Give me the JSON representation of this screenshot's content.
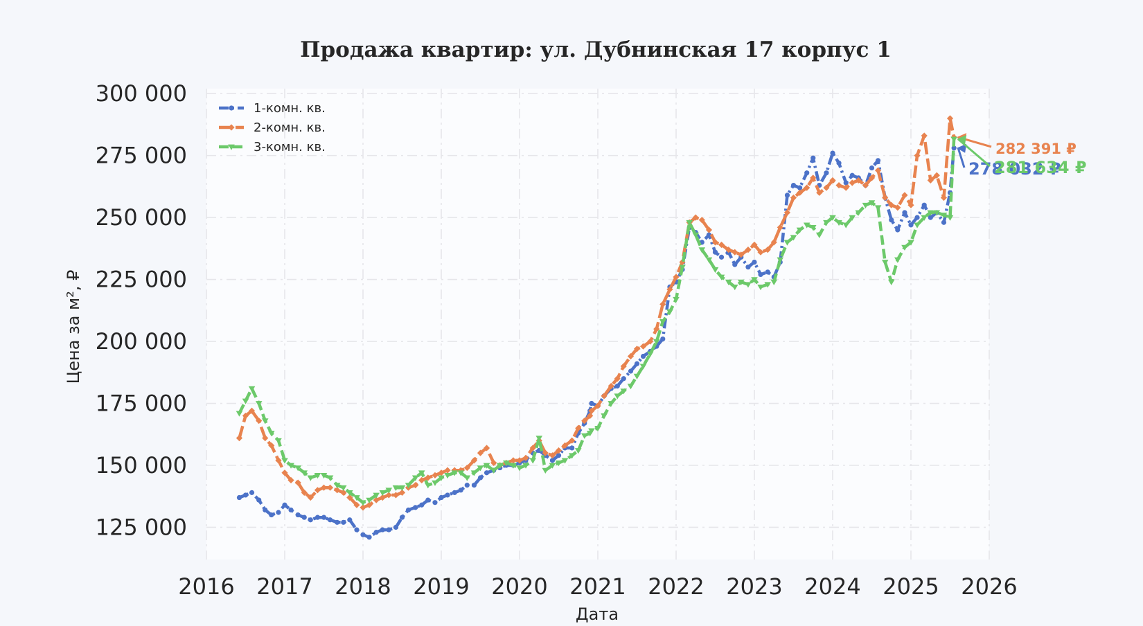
{
  "chart_data": {
    "type": "line",
    "title": "Продажа квартир: ул. Дубнинская 17 корпус 1",
    "xlabel": "Дата",
    "ylabel": "Цена за м², ₽",
    "xlim": [
      2016.0,
      2026.0
    ],
    "ylim": [
      112000,
      302000
    ],
    "x_ticks": [
      2016,
      2017,
      2018,
      2019,
      2020,
      2021,
      2022,
      2023,
      2024,
      2025,
      2026
    ],
    "y_ticks": [
      125000,
      150000,
      175000,
      200000,
      225000,
      250000,
      275000,
      300000
    ],
    "y_tick_labels": [
      "125 000",
      "150 000",
      "175 000",
      "200 000",
      "225 000",
      "250 000",
      "275 000",
      "300 000"
    ],
    "grid": true,
    "legend_position": "top-left",
    "colors": {
      "background": "#f5f7fb",
      "plot_bg": "#fbfcfe",
      "grid": "#e6e6ea",
      "text": "#262626"
    },
    "series": [
      {
        "name": "1-комн. кв.",
        "color": "#4c72c8",
        "marker": "circle",
        "last_value_label": "278 032 ₽",
        "x": [
          2016.42,
          2016.5,
          2016.58,
          2016.67,
          2016.75,
          2016.83,
          2016.92,
          2017.0,
          2017.08,
          2017.17,
          2017.25,
          2017.33,
          2017.42,
          2017.5,
          2017.58,
          2017.67,
          2017.75,
          2017.83,
          2017.92,
          2018.0,
          2018.08,
          2018.17,
          2018.25,
          2018.33,
          2018.42,
          2018.5,
          2018.58,
          2018.67,
          2018.75,
          2018.83,
          2018.92,
          2019.0,
          2019.08,
          2019.17,
          2019.25,
          2019.33,
          2019.42,
          2019.5,
          2019.58,
          2019.67,
          2019.75,
          2019.83,
          2019.92,
          2020.0,
          2020.08,
          2020.17,
          2020.25,
          2020.33,
          2020.42,
          2020.5,
          2020.58,
          2020.67,
          2020.75,
          2020.83,
          2020.9,
          2020.92,
          2021.0,
          2021.08,
          2021.17,
          2021.25,
          2021.33,
          2021.42,
          2021.5,
          2021.58,
          2021.67,
          2021.75,
          2021.83,
          2021.92,
          2022.0,
          2022.08,
          2022.17,
          2022.25,
          2022.33,
          2022.42,
          2022.5,
          2022.58,
          2022.67,
          2022.75,
          2022.83,
          2022.92,
          2023.0,
          2023.08,
          2023.17,
          2023.25,
          2023.33,
          2023.42,
          2023.5,
          2023.58,
          2023.67,
          2023.75,
          2023.83,
          2023.92,
          2024.0,
          2024.08,
          2024.17,
          2024.25,
          2024.33,
          2024.42,
          2024.5,
          2024.58,
          2024.67,
          2024.75,
          2024.83,
          2024.92,
          2025.0,
          2025.08,
          2025.17,
          2025.25,
          2025.33,
          2025.42,
          2025.5,
          2025.55
        ],
        "y": [
          137000,
          138000,
          139000,
          136000,
          132000,
          130000,
          131000,
          134000,
          132000,
          130000,
          129000,
          128000,
          129000,
          129000,
          128000,
          127000,
          127000,
          128000,
          124000,
          122000,
          121000,
          123000,
          124000,
          124000,
          125000,
          129000,
          132000,
          133000,
          134000,
          136000,
          135000,
          137000,
          138000,
          139000,
          140000,
          142000,
          142000,
          145000,
          147000,
          148000,
          149000,
          150000,
          150000,
          151000,
          152000,
          155000,
          156000,
          154000,
          152000,
          154000,
          157000,
          157000,
          163000,
          167000,
          172000,
          175000,
          174000,
          178000,
          181000,
          182000,
          185000,
          188000,
          191000,
          194000,
          196000,
          198000,
          201000,
          222000,
          224000,
          229000,
          246000,
          244000,
          240000,
          243000,
          236000,
          234000,
          236000,
          231000,
          234000,
          230000,
          232000,
          227000,
          228000,
          226000,
          232000,
          259000,
          263000,
          262000,
          268000,
          274000,
          263000,
          268000,
          276000,
          272000,
          264000,
          267000,
          266000,
          263000,
          270000,
          273000,
          258000,
          249000,
          245000,
          252000,
          247000,
          250000,
          255000,
          250000,
          252000,
          248000,
          260000,
          278032
        ]
      },
      {
        "name": "2-комн. кв.",
        "color": "#e8834f",
        "marker": "diamond",
        "last_value_label": "282 391 ₽",
        "x": [
          2016.42,
          2016.5,
          2016.58,
          2016.67,
          2016.75,
          2016.83,
          2016.92,
          2017.0,
          2017.08,
          2017.17,
          2017.25,
          2017.33,
          2017.42,
          2017.5,
          2017.58,
          2017.67,
          2017.75,
          2017.83,
          2017.92,
          2018.0,
          2018.08,
          2018.17,
          2018.25,
          2018.33,
          2018.42,
          2018.5,
          2018.58,
          2018.67,
          2018.75,
          2018.83,
          2018.92,
          2019.0,
          2019.08,
          2019.17,
          2019.25,
          2019.33,
          2019.42,
          2019.5,
          2019.58,
          2019.67,
          2019.75,
          2019.83,
          2019.92,
          2020.0,
          2020.08,
          2020.17,
          2020.25,
          2020.33,
          2020.42,
          2020.5,
          2020.58,
          2020.67,
          2020.75,
          2020.83,
          2020.9,
          2020.92,
          2021.0,
          2021.08,
          2021.17,
          2021.25,
          2021.33,
          2021.42,
          2021.5,
          2021.58,
          2021.67,
          2021.75,
          2021.83,
          2021.92,
          2022.0,
          2022.08,
          2022.17,
          2022.25,
          2022.33,
          2022.42,
          2022.5,
          2022.58,
          2022.67,
          2022.75,
          2022.83,
          2022.92,
          2023.0,
          2023.08,
          2023.17,
          2023.25,
          2023.33,
          2023.42,
          2023.5,
          2023.58,
          2023.67,
          2023.75,
          2023.83,
          2023.92,
          2024.0,
          2024.08,
          2024.17,
          2024.25,
          2024.33,
          2024.42,
          2024.5,
          2024.58,
          2024.67,
          2024.75,
          2024.83,
          2024.92,
          2025.0,
          2025.08,
          2025.17,
          2025.25,
          2025.33,
          2025.42,
          2025.5,
          2025.55
        ],
        "y": [
          161000,
          170000,
          172000,
          168000,
          161000,
          158000,
          152000,
          147000,
          144000,
          143000,
          139000,
          137000,
          140000,
          141000,
          141000,
          140000,
          139000,
          137000,
          134000,
          133000,
          134000,
          136000,
          137000,
          138000,
          138000,
          139000,
          141000,
          142000,
          144000,
          145000,
          146000,
          147000,
          148000,
          148000,
          148000,
          149000,
          152000,
          155000,
          157000,
          151000,
          150000,
          151000,
          152000,
          152000,
          153000,
          157000,
          160000,
          155000,
          154000,
          156000,
          158000,
          160000,
          165000,
          168000,
          170000,
          172000,
          174000,
          178000,
          182000,
          185000,
          190000,
          194000,
          197000,
          198000,
          200000,
          205000,
          215000,
          221000,
          226000,
          232000,
          248000,
          250000,
          249000,
          245000,
          240000,
          239000,
          237000,
          236000,
          235000,
          237000,
          239000,
          236000,
          237000,
          240000,
          246000,
          252000,
          258000,
          260000,
          262000,
          266000,
          260000,
          262000,
          265000,
          263000,
          262000,
          264000,
          265000,
          263000,
          266000,
          269000,
          258000,
          255000,
          254000,
          259000,
          255000,
          275000,
          283000,
          265000,
          267000,
          258000,
          290000,
          282391
        ]
      },
      {
        "name": "3-комн. кв.",
        "color": "#6cc96a",
        "marker": "triangle-down",
        "last_value_label": "281 634 ₽",
        "x": [
          2016.42,
          2016.5,
          2016.58,
          2016.67,
          2016.75,
          2016.83,
          2016.92,
          2017.0,
          2017.08,
          2017.17,
          2017.25,
          2017.33,
          2017.42,
          2017.5,
          2017.58,
          2017.67,
          2017.75,
          2017.83,
          2017.92,
          2018.0,
          2018.08,
          2018.17,
          2018.25,
          2018.33,
          2018.42,
          2018.5,
          2018.58,
          2018.67,
          2018.75,
          2018.83,
          2018.92,
          2019.0,
          2019.08,
          2019.17,
          2019.25,
          2019.33,
          2019.42,
          2019.5,
          2019.58,
          2019.67,
          2019.75,
          2019.83,
          2019.92,
          2020.0,
          2020.08,
          2020.17,
          2020.25,
          2020.33,
          2020.42,
          2020.5,
          2020.58,
          2020.67,
          2020.75,
          2020.83,
          2020.9,
          2020.92,
          2021.0,
          2021.08,
          2021.17,
          2021.25,
          2021.33,
          2021.42,
          2021.5,
          2021.58,
          2021.67,
          2021.75,
          2021.83,
          2021.92,
          2022.0,
          2022.08,
          2022.17,
          2022.25,
          2022.33,
          2022.42,
          2022.5,
          2022.58,
          2022.67,
          2022.75,
          2022.83,
          2022.92,
          2023.0,
          2023.08,
          2023.17,
          2023.25,
          2023.33,
          2023.42,
          2023.5,
          2023.58,
          2023.67,
          2023.75,
          2023.83,
          2023.92,
          2024.0,
          2024.08,
          2024.17,
          2024.25,
          2024.33,
          2024.42,
          2024.5,
          2024.58,
          2024.67,
          2024.75,
          2024.83,
          2024.92,
          2025.0,
          2025.08,
          2025.17,
          2025.25,
          2025.33,
          2025.42,
          2025.5,
          2025.55
        ],
        "y": [
          171000,
          176000,
          181000,
          175000,
          168000,
          163000,
          160000,
          152000,
          150000,
          149000,
          147000,
          145000,
          146000,
          146000,
          145000,
          142000,
          141000,
          139000,
          137000,
          135000,
          136000,
          138000,
          139000,
          140000,
          141000,
          141000,
          142000,
          145000,
          147000,
          142000,
          143000,
          145000,
          146000,
          147000,
          147000,
          145000,
          147000,
          149000,
          150000,
          148000,
          150000,
          151000,
          150000,
          149000,
          150000,
          152000,
          161000,
          148000,
          150000,
          151000,
          152000,
          154000,
          156000,
          162000,
          163000,
          164000,
          165000,
          170000,
          175000,
          178000,
          180000,
          182000,
          186000,
          190000,
          195000,
          200000,
          208000,
          212000,
          217000,
          230000,
          248000,
          243000,
          237000,
          233000,
          229000,
          226000,
          224000,
          222000,
          224000,
          223000,
          225000,
          222000,
          223000,
          224000,
          233000,
          240000,
          242000,
          245000,
          247000,
          246000,
          243000,
          248000,
          250000,
          248000,
          247000,
          250000,
          252000,
          255000,
          256000,
          254000,
          232000,
          224000,
          233000,
          238000,
          240000,
          247000,
          250000,
          252000,
          252000,
          251000,
          250000,
          281634
        ]
      }
    ]
  }
}
